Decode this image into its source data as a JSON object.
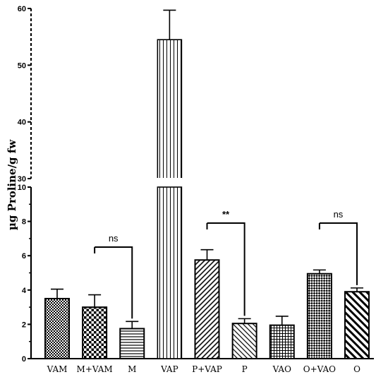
{
  "chart_data": {
    "type": "bar",
    "title": "",
    "xlabel": "",
    "ylabel": "µg Proline/g fw",
    "y_axis_break": {
      "lower_range": [
        0,
        10
      ],
      "upper_range": [
        30,
        60
      ]
    },
    "lower_ticks": [
      "0",
      "2",
      "4",
      "6",
      "8",
      "10"
    ],
    "upper_ticks": [
      "30",
      "40",
      "50",
      "60"
    ],
    "categories": [
      "VAM",
      "M+VAM",
      "M",
      "VAP",
      "P+VAP",
      "P",
      "VAO",
      "O+VAO",
      "O"
    ],
    "values": [
      3.5,
      3.0,
      1.75,
      54.5,
      5.75,
      2.05,
      1.95,
      4.95,
      3.9
    ],
    "errors": [
      0.55,
      0.72,
      0.42,
      5.2,
      0.6,
      0.28,
      0.52,
      0.22,
      0.22
    ],
    "patterns": [
      "checker-fine",
      "checker-coarse",
      "horizontal",
      "vertical",
      "diagonal-up",
      "diagonal-down",
      "grid",
      "checker-dense",
      "diagonal-down-bold"
    ],
    "annotations": [
      {
        "from": "M+VAM",
        "to": "M",
        "label": "ns",
        "y": 6.5
      },
      {
        "from": "P+VAP",
        "to": "P",
        "label": "**",
        "y": 7.9
      },
      {
        "from": "O+VAO",
        "to": "O",
        "label": "ns",
        "y": 7.9
      }
    ],
    "grid": false,
    "legend": "none"
  }
}
